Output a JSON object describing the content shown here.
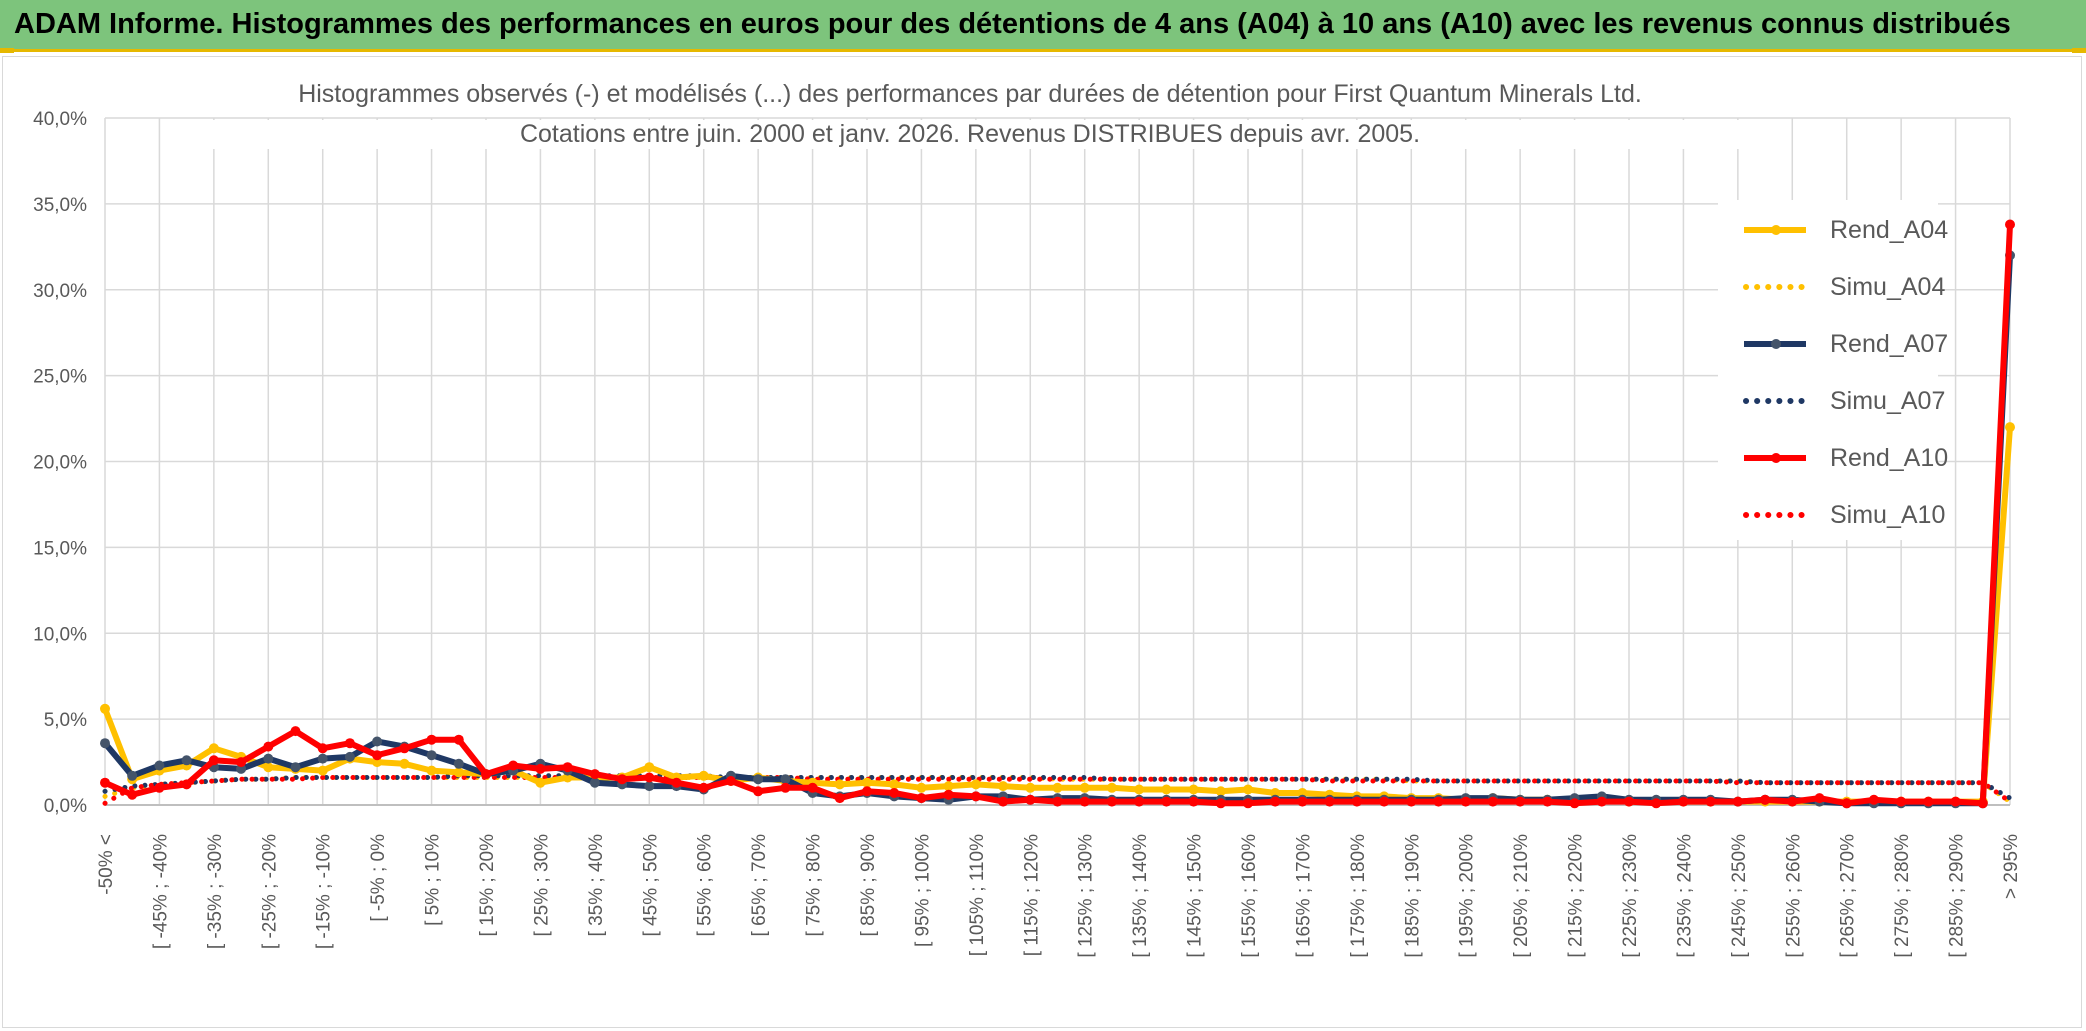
{
  "header": {
    "title": "ADAM Informe. Histogrammes des performances en euros pour des détentions de 4 ans (A04) à 10 ans (A10) avec les revenus connus distribués"
  },
  "chart_data": {
    "type": "line",
    "title": "Histogrammes observés (-) et modélisés (...) des performances par durées de détention pour First Quantum Minerals Ltd.",
    "subtitle": "Cotations entre juin. 2000 et janv. 2026. Revenus DISTRIBUES depuis avr. 2005.",
    "xlabel": "",
    "ylabel": "",
    "ylim": [
      0,
      40
    ],
    "y_ticks": [
      "0,0%",
      "5,0%",
      "10,0%",
      "15,0%",
      "20,0%",
      "25,0%",
      "30,0%",
      "35,0%",
      "40,0%"
    ],
    "grid": true,
    "legend_position": "right",
    "categories": [
      "-50% <",
      "[ -50% ; -45%",
      "[ -45% ; -40%",
      "[ -40% ; -35%",
      "[ -35% ; -30%",
      "[ -30% ; -25%",
      "[ -25% ; -20%",
      "[ -20% ; -15%",
      "[ -15% ; -10%",
      "[ -10% ; -5%",
      "[ -5% ; 0%",
      "[ 0% ; 5%",
      "[ 5% ; 10%",
      "[ 10% ; 15%",
      "[ 15% ; 20%",
      "[ 20% ; 25%",
      "[ 25% ; 30%",
      "[ 30% ; 35%",
      "[ 35% ; 40%",
      "[ 40% ; 45%",
      "[ 45% ; 50%",
      "[ 50% ; 55%",
      "[ 55% ; 60%",
      "[ 60% ; 65%",
      "[ 65% ; 70%",
      "[ 70% ; 75%",
      "[ 75% ; 80%",
      "[ 80% ; 85%",
      "[ 85% ; 90%",
      "[ 90% ; 95%",
      "[ 95% ; 100%",
      "[ 100% ; 105%",
      "[ 105% ; 110%",
      "[ 110% ; 115%",
      "[ 115% ; 120%",
      "[ 120% ; 125%",
      "[ 125% ; 130%",
      "[ 130% ; 135%",
      "[ 135% ; 140%",
      "[ 140% ; 145%",
      "[ 145% ; 150%",
      "[ 150% ; 155%",
      "[ 155% ; 160%",
      "[ 160% ; 165%",
      "[ 165% ; 170%",
      "[ 170% ; 175%",
      "[ 175% ; 180%",
      "[ 180% ; 185%",
      "[ 185% ; 190%",
      "[ 190% ; 195%",
      "[ 195% ; 200%",
      "[ 200% ; 205%",
      "[ 205% ; 210%",
      "[ 210% ; 215%",
      "[ 215% ; 220%",
      "[ 220% ; 225%",
      "[ 225% ; 230%",
      "[ 230% ; 235%",
      "[ 235% ; 240%",
      "[ 240% ; 245%",
      "[ 245% ; 250%",
      "[ 250% ; 255%",
      "[ 255% ; 260%",
      "[ 260% ; 265%",
      "[ 265% ; 270%",
      "[ 270% ; 275%",
      "[ 275% ; 280%",
      "[ 280% ; 285%",
      "[ 285% ; 290%",
      "[ 290% ; 295%",
      "> 295%"
    ],
    "label_every": 2,
    "series": [
      {
        "name": "Rend_A04",
        "style": "solid",
        "color": "#ffc000",
        "values": [
          5.6,
          1.5,
          2.0,
          2.3,
          3.3,
          2.8,
          2.2,
          2.1,
          2.0,
          2.7,
          2.5,
          2.4,
          2.0,
          1.9,
          1.8,
          2.0,
          1.3,
          1.6,
          1.6,
          1.6,
          2.2,
          1.6,
          1.7,
          1.4,
          1.6,
          1.4,
          1.3,
          1.2,
          1.3,
          1.2,
          1.0,
          1.1,
          1.2,
          1.1,
          1.0,
          1.0,
          1.0,
          1.0,
          0.9,
          0.9,
          0.9,
          0.8,
          0.9,
          0.7,
          0.7,
          0.6,
          0.5,
          0.5,
          0.4,
          0.4,
          0.3,
          0.4,
          0.3,
          0.3,
          0.3,
          0.3,
          0.2,
          0.2,
          0.2,
          0.2,
          0.2,
          0.2,
          0.2,
          0.2,
          0.2,
          0.2,
          0.2,
          0.2,
          0.2,
          0.2,
          22.0
        ]
      },
      {
        "name": "Simu_A04",
        "style": "dotted",
        "color": "#ffc000",
        "values": [
          0.5,
          1.0,
          1.2,
          1.3,
          1.4,
          1.5,
          1.5,
          1.6,
          1.6,
          1.6,
          1.6,
          1.6,
          1.6,
          1.6,
          1.6,
          1.6,
          1.6,
          1.6,
          1.6,
          1.6,
          1.6,
          1.6,
          1.6,
          1.6,
          1.6,
          1.6,
          1.6,
          1.6,
          1.6,
          1.6,
          1.6,
          1.6,
          1.6,
          1.6,
          1.6,
          1.5,
          1.5,
          1.5,
          1.5,
          1.5,
          1.5,
          1.5,
          1.5,
          1.5,
          1.5,
          1.5,
          1.5,
          1.5,
          1.4,
          1.4,
          1.4,
          1.4,
          1.4,
          1.4,
          1.4,
          1.4,
          1.4,
          1.4,
          1.4,
          1.4,
          1.4,
          1.3,
          1.3,
          1.3,
          1.3,
          1.3,
          1.3,
          1.3,
          1.3,
          1.3,
          0.2
        ]
      },
      {
        "name": "Rend_A07",
        "style": "solid",
        "color": "#1f3864",
        "values": [
          3.6,
          1.7,
          2.3,
          2.6,
          2.2,
          2.1,
          2.7,
          2.2,
          2.7,
          2.8,
          3.7,
          3.4,
          2.9,
          2.4,
          1.8,
          2.0,
          2.4,
          2.0,
          1.3,
          1.2,
          1.1,
          1.1,
          0.9,
          1.7,
          1.5,
          1.5,
          0.7,
          0.5,
          0.7,
          0.5,
          0.4,
          0.3,
          0.5,
          0.5,
          0.3,
          0.4,
          0.4,
          0.3,
          0.3,
          0.3,
          0.3,
          0.3,
          0.3,
          0.3,
          0.3,
          0.3,
          0.3,
          0.3,
          0.3,
          0.3,
          0.4,
          0.4,
          0.3,
          0.3,
          0.4,
          0.5,
          0.3,
          0.3,
          0.3,
          0.3,
          0.2,
          0.3,
          0.3,
          0.2,
          0.1,
          0.1,
          0.1,
          0.1,
          0.1,
          0.1,
          32.0
        ]
      },
      {
        "name": "Simu_A07",
        "style": "dotted",
        "color": "#1f3864",
        "values": [
          0.8,
          1.1,
          1.2,
          1.3,
          1.4,
          1.5,
          1.5,
          1.6,
          1.6,
          1.6,
          1.6,
          1.6,
          1.6,
          1.7,
          1.7,
          1.7,
          1.7,
          1.7,
          1.7,
          1.7,
          1.7,
          1.7,
          1.7,
          1.6,
          1.6,
          1.6,
          1.6,
          1.6,
          1.6,
          1.6,
          1.6,
          1.6,
          1.6,
          1.6,
          1.6,
          1.6,
          1.6,
          1.5,
          1.5,
          1.5,
          1.5,
          1.5,
          1.5,
          1.5,
          1.5,
          1.5,
          1.5,
          1.5,
          1.5,
          1.4,
          1.4,
          1.4,
          1.4,
          1.4,
          1.4,
          1.4,
          1.4,
          1.4,
          1.4,
          1.4,
          1.4,
          1.3,
          1.3,
          1.3,
          1.3,
          1.3,
          1.3,
          1.3,
          1.3,
          1.3,
          0.4
        ]
      },
      {
        "name": "Rend_A10",
        "style": "solid",
        "color": "#ff0000",
        "values": [
          1.3,
          0.6,
          1.0,
          1.2,
          2.6,
          2.5,
          3.4,
          4.3,
          3.3,
          3.6,
          2.9,
          3.3,
          3.8,
          3.8,
          1.8,
          2.3,
          2.1,
          2.2,
          1.8,
          1.5,
          1.6,
          1.3,
          1.0,
          1.4,
          0.8,
          1.0,
          1.0,
          0.4,
          0.8,
          0.7,
          0.4,
          0.6,
          0.5,
          0.2,
          0.3,
          0.2,
          0.2,
          0.2,
          0.2,
          0.2,
          0.2,
          0.1,
          0.1,
          0.2,
          0.2,
          0.2,
          0.2,
          0.2,
          0.2,
          0.2,
          0.2,
          0.2,
          0.2,
          0.2,
          0.1,
          0.2,
          0.2,
          0.1,
          0.2,
          0.2,
          0.2,
          0.3,
          0.2,
          0.4,
          0.1,
          0.3,
          0.2,
          0.2,
          0.2,
          0.1,
          33.8
        ]
      },
      {
        "name": "Simu_A10",
        "style": "dotted",
        "color": "#ff0000",
        "values": [
          0.1,
          1.0,
          1.2,
          1.3,
          1.4,
          1.5,
          1.5,
          1.5,
          1.6,
          1.6,
          1.6,
          1.6,
          1.6,
          1.6,
          1.6,
          1.6,
          1.6,
          1.6,
          1.6,
          1.6,
          1.6,
          1.6,
          1.6,
          1.6,
          1.6,
          1.6,
          1.5,
          1.5,
          1.5,
          1.5,
          1.5,
          1.5,
          1.5,
          1.5,
          1.5,
          1.5,
          1.5,
          1.5,
          1.5,
          1.5,
          1.5,
          1.5,
          1.5,
          1.5,
          1.5,
          1.4,
          1.4,
          1.4,
          1.4,
          1.4,
          1.4,
          1.4,
          1.4,
          1.4,
          1.4,
          1.4,
          1.4,
          1.4,
          1.4,
          1.4,
          1.3,
          1.3,
          1.3,
          1.3,
          1.3,
          1.3,
          1.3,
          1.3,
          1.3,
          1.3,
          0.2
        ]
      }
    ]
  }
}
